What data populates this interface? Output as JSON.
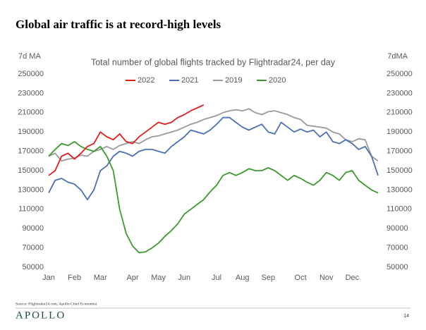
{
  "header": {
    "title": "Global air traffic is at record-high levels"
  },
  "chart_data": {
    "type": "line",
    "title": "Total number of global flights tracked by Flightradar24, per day",
    "y_label": "7d MA",
    "y2_label": "7dMA",
    "categories": [
      "Jan",
      null,
      null,
      null,
      "Feb",
      null,
      null,
      null,
      "Mar",
      null,
      null,
      null,
      null,
      "Apr",
      null,
      null,
      null,
      "May",
      null,
      null,
      null,
      "Jun",
      null,
      null,
      null,
      null,
      "Jul",
      null,
      null,
      null,
      "Aug",
      null,
      null,
      null,
      "Sep",
      null,
      null,
      null,
      null,
      "Oct",
      null,
      null,
      null,
      "Nov",
      null,
      null,
      null,
      "Dec",
      null,
      null,
      null,
      null
    ],
    "series": [
      {
        "name": "2022",
        "color": "#e0201b",
        "values": [
          145000,
          150000,
          165000,
          168000,
          162000,
          168000,
          175000,
          178000,
          190000,
          185000,
          182000,
          188000,
          180000,
          178000,
          185000,
          190000,
          195000,
          200000,
          198000,
          200000,
          205000,
          208000,
          212000,
          215000,
          218000,
          null,
          null,
          null,
          null,
          null,
          null,
          null,
          null,
          null,
          null,
          null,
          null,
          null,
          null,
          null,
          null,
          null,
          null,
          null,
          null,
          null,
          null,
          null,
          null,
          null,
          null,
          null
        ]
      },
      {
        "name": "2021",
        "color": "#4a6fb5",
        "values": [
          127000,
          140000,
          142000,
          138000,
          136000,
          130000,
          120000,
          130000,
          150000,
          155000,
          165000,
          170000,
          168000,
          165000,
          170000,
          172000,
          172000,
          170000,
          168000,
          175000,
          180000,
          185000,
          192000,
          190000,
          188000,
          192000,
          198000,
          205000,
          205000,
          200000,
          195000,
          192000,
          195000,
          198000,
          190000,
          188000,
          200000,
          195000,
          190000,
          193000,
          190000,
          192000,
          185000,
          190000,
          180000,
          178000,
          182000,
          178000,
          172000,
          175000,
          165000,
          145000
        ]
      },
      {
        "name": "2019",
        "color": "#9a9a9a",
        "values": [
          165000,
          168000,
          160000,
          162000,
          163000,
          166000,
          165000,
          170000,
          172000,
          175000,
          172000,
          176000,
          178000,
          180000,
          178000,
          182000,
          185000,
          186000,
          188000,
          190000,
          192000,
          195000,
          198000,
          200000,
          203000,
          205000,
          207000,
          210000,
          212000,
          213000,
          212000,
          214000,
          210000,
          208000,
          211000,
          212000,
          210000,
          208000,
          205000,
          203000,
          197000,
          196000,
          195000,
          194000,
          190000,
          188000,
          182000,
          180000,
          183000,
          182000,
          165000,
          160000
        ]
      },
      {
        "name": "2020",
        "color": "#3a9a2e",
        "values": [
          165000,
          172000,
          178000,
          176000,
          180000,
          175000,
          172000,
          170000,
          175000,
          165000,
          150000,
          110000,
          85000,
          72000,
          65000,
          66000,
          70000,
          75000,
          82000,
          88000,
          95000,
          105000,
          110000,
          115000,
          120000,
          128000,
          135000,
          145000,
          148000,
          145000,
          148000,
          152000,
          150000,
          150000,
          153000,
          150000,
          145000,
          140000,
          145000,
          142000,
          138000,
          135000,
          140000,
          148000,
          145000,
          140000,
          148000,
          150000,
          140000,
          135000,
          130000,
          127000
        ]
      }
    ],
    "ylim": [
      50000,
      250000
    ],
    "yticks": [
      50000,
      70000,
      90000,
      110000,
      130000,
      150000,
      170000,
      190000,
      210000,
      230000,
      250000
    ],
    "y2lim": [
      50000,
      250000
    ],
    "y2ticks": [
      50000,
      70000,
      90000,
      110000,
      130000,
      150000,
      170000,
      190000,
      210000,
      230000,
      250000
    ],
    "legend": "top",
    "grid": false
  },
  "footer": {
    "source": "Source: Flightradar24.com, Apollo Chief Economist",
    "brand": "APOLLO",
    "page": "14"
  }
}
